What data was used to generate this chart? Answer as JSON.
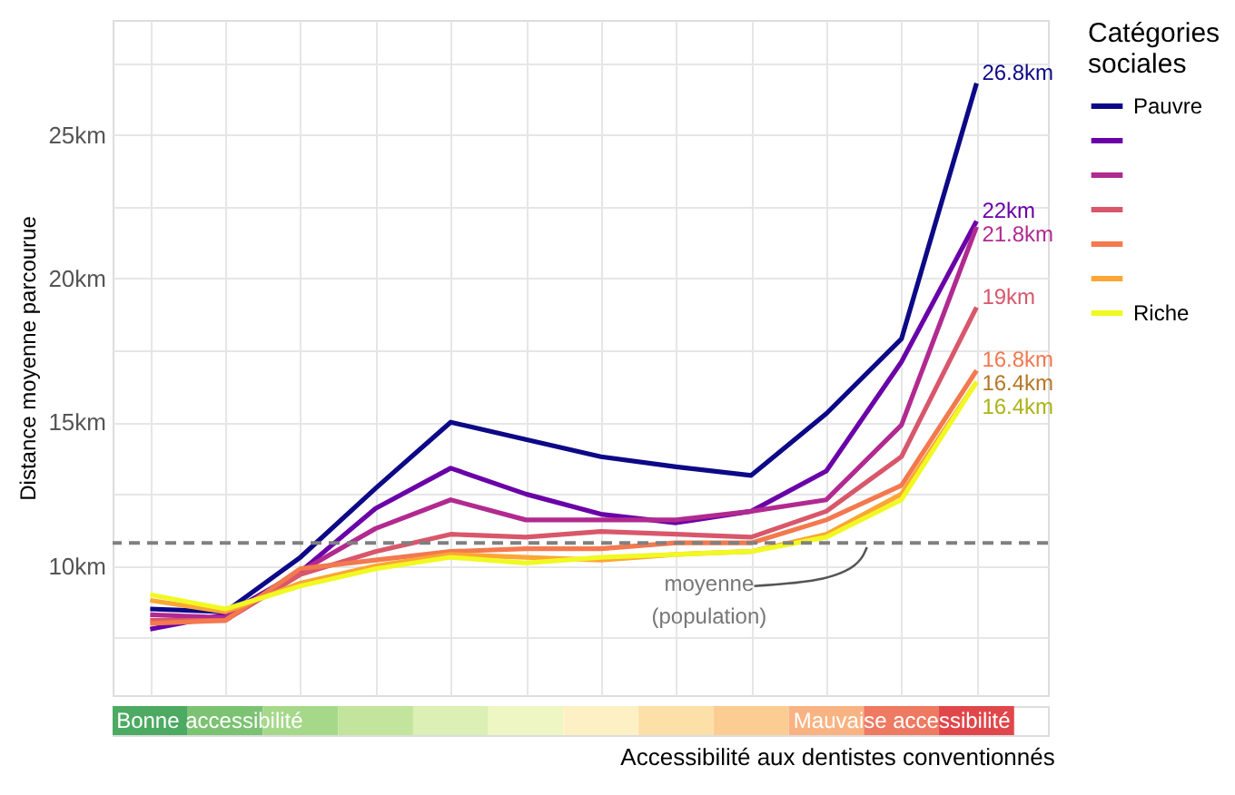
{
  "chart_data": {
    "type": "line",
    "xlabel": "Accessibilité aux dentistes conventionnés",
    "ylabel": "Distance moyenne parcourue",
    "legend_title": "Catégories sociales",
    "legend": "right",
    "grid": true,
    "line_style": "solid",
    "marker": "none",
    "categories": [
      null,
      null,
      null,
      null,
      null,
      null,
      null,
      null,
      null,
      null,
      null,
      null
    ],
    "ylim": [
      5.5,
      29
    ],
    "yticks": [
      {
        "value": 7.5,
        "label": null
      },
      {
        "value": 10,
        "label": "10km"
      },
      {
        "value": 12.5,
        "label": null
      },
      {
        "value": 15,
        "label": "15km"
      },
      {
        "value": 17.5,
        "label": null
      },
      {
        "value": 20,
        "label": "20km"
      },
      {
        "value": 22.5,
        "label": null
      },
      {
        "value": 25,
        "label": "25km"
      },
      {
        "value": 27.5,
        "label": null
      }
    ],
    "series": [
      {
        "name": "Pauvre",
        "color": "#0d0887",
        "values": [
          8.5,
          8.4,
          10.3,
          12.7,
          15.0,
          14.4,
          13.8,
          13.45,
          13.15,
          15.3,
          17.9,
          26.8
        ],
        "value_labels": [
          null,
          null,
          null,
          null,
          null,
          null,
          null,
          null,
          null,
          null,
          null,
          "26.8km"
        ]
      },
      {
        "color": "#6a00a8",
        "values": [
          7.8,
          8.3,
          9.8,
          12.0,
          13.4,
          12.5,
          11.8,
          11.5,
          11.9,
          13.3,
          17.1,
          22
        ],
        "value_labels": [
          null,
          null,
          null,
          null,
          null,
          null,
          null,
          null,
          null,
          null,
          null,
          "22km"
        ]
      },
      {
        "color": "#b12a90",
        "values": [
          8.3,
          8.2,
          9.8,
          11.3,
          12.3,
          11.6,
          11.6,
          11.6,
          11.9,
          12.3,
          14.9,
          21.8
        ],
        "value_labels": [
          null,
          null,
          null,
          null,
          null,
          null,
          null,
          null,
          null,
          null,
          null,
          "21.8km"
        ]
      },
      {
        "color": "#d8576b",
        "values": [
          8.1,
          8.1,
          9.7,
          10.5,
          11.1,
          11.0,
          11.2,
          11.1,
          11.0,
          11.9,
          13.8,
          19
        ],
        "value_labels": [
          null,
          null,
          null,
          null,
          null,
          null,
          null,
          null,
          null,
          null,
          null,
          "19km"
        ]
      },
      {
        "color": "#f3794f",
        "values": [
          8.0,
          8.1,
          9.9,
          10.2,
          10.5,
          10.6,
          10.6,
          10.8,
          10.8,
          11.6,
          12.8,
          16.8
        ],
        "value_labels": [
          null,
          null,
          null,
          null,
          null,
          null,
          null,
          null,
          null,
          null,
          null,
          "16.8km"
        ]
      },
      {
        "color": "#fca636",
        "values": [
          8.8,
          8.4,
          9.4,
          10.0,
          10.4,
          10.3,
          10.2,
          10.4,
          10.5,
          11.1,
          12.5,
          16.4
        ],
        "value_labels": [
          null,
          null,
          null,
          null,
          null,
          null,
          null,
          null,
          null,
          null,
          null,
          "16.4km"
        ]
      },
      {
        "name": "Riche",
        "color": "#f0f921",
        "values": [
          9.0,
          8.5,
          9.3,
          9.9,
          10.3,
          10.1,
          10.3,
          10.4,
          10.5,
          11.0,
          12.3,
          16.4
        ],
        "value_labels": [
          null,
          null,
          null,
          null,
          null,
          null,
          null,
          null,
          null,
          null,
          null,
          "16.4km"
        ]
      }
    ],
    "ref_lines": [
      {
        "axis": "y",
        "value": 10.8,
        "label": "moyenne (population)",
        "color": "#808080",
        "line_style": "dashed"
      }
    ],
    "annotations": [
      "Bonne accessibilité",
      "Mauvaise accessibilité"
    ]
  }
}
